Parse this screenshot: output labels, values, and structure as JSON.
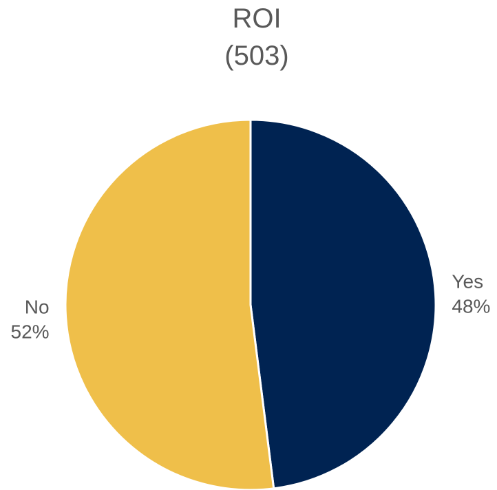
{
  "chart_data": {
    "type": "pie",
    "title": "ROI",
    "subtitle": "(503)",
    "slices": [
      {
        "label": "Yes",
        "value": 48,
        "percent_label": "48%",
        "color": "#002352"
      },
      {
        "label": "No",
        "value": 52,
        "percent_label": "52%",
        "color": "#EFBF4A"
      }
    ],
    "start_angle_deg": 0,
    "direction": "clockwise",
    "separator_color": "#ffffff",
    "legend": "none"
  }
}
